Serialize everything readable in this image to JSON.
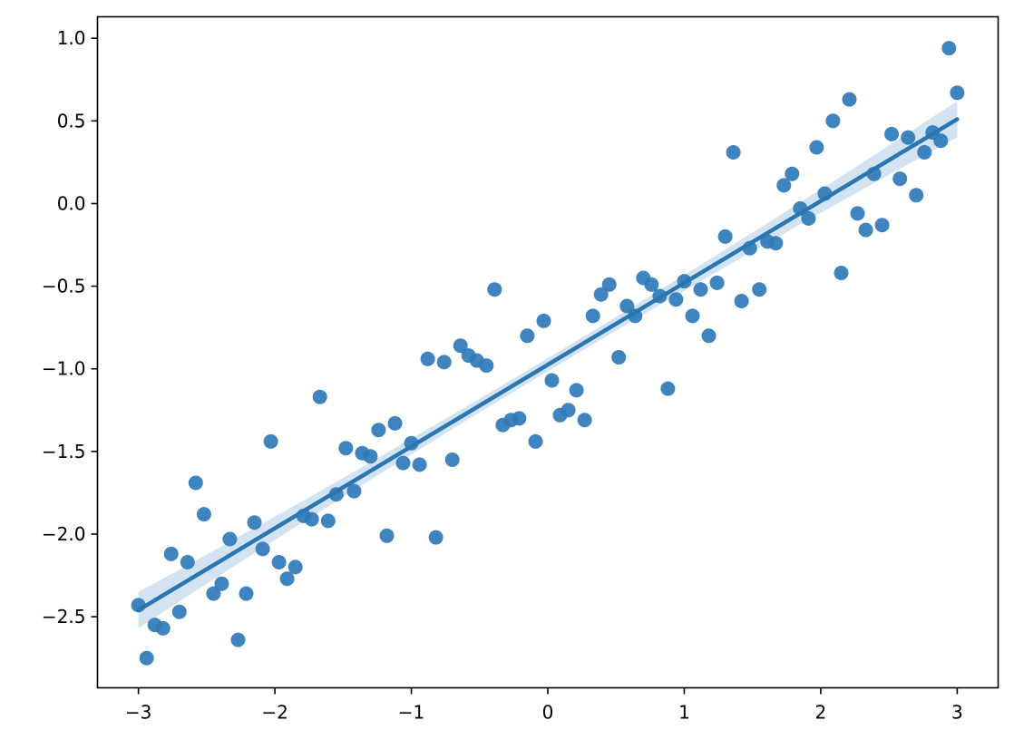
{
  "chart_data": {
    "type": "scatter",
    "title": "",
    "xlabel": "",
    "ylabel": "",
    "xlim": [
      -3.3,
      3.3
    ],
    "ylim": [
      -2.93,
      1.13
    ],
    "x_ticks": [
      -3,
      -2,
      -1,
      0,
      1,
      2,
      3
    ],
    "x_tick_labels": [
      "−3",
      "−2",
      "−1",
      "0",
      "1",
      "2",
      "3"
    ],
    "y_ticks": [
      -2.5,
      -2.0,
      -1.5,
      -1.0,
      -0.5,
      0.0,
      0.5,
      1.0
    ],
    "y_tick_labels": [
      "−2.5",
      "−2.0",
      "−1.5",
      "−1.0",
      "−0.5",
      "0.0",
      "0.5",
      "1.0"
    ],
    "grid": false,
    "colors": {
      "points": "#2f7ab8",
      "line": "#2a76b2",
      "band": "#c9dcee"
    },
    "series": [
      {
        "kind": "points",
        "x": [
          -3.0,
          -2.94,
          -2.88,
          -2.82,
          -2.76,
          -2.7,
          -2.64,
          -2.58,
          -2.52,
          -2.45,
          -2.39,
          -2.33,
          -2.27,
          -2.21,
          -2.15,
          -2.09,
          -2.03,
          -1.97,
          -1.91,
          -1.85,
          -1.79,
          -1.73,
          -1.67,
          -1.61,
          -1.55,
          -1.48,
          -1.42,
          -1.36,
          -1.3,
          -1.24,
          -1.18,
          -1.12,
          -1.06,
          -1.0,
          -0.94,
          -0.88,
          -0.82,
          -0.76,
          -0.7,
          -0.64,
          -0.58,
          -0.52,
          -0.45,
          -0.39,
          -0.33,
          -0.27,
          -0.21,
          -0.15,
          -0.09,
          -0.03,
          0.03,
          0.09,
          0.15,
          0.21,
          0.27,
          0.33,
          0.39,
          0.45,
          0.52,
          0.58,
          0.64,
          0.7,
          0.76,
          0.82,
          0.88,
          0.94,
          1.0,
          1.06,
          1.12,
          1.18,
          1.24,
          1.3,
          1.36,
          1.42,
          1.48,
          1.55,
          1.61,
          1.67,
          1.73,
          1.79,
          1.85,
          1.91,
          1.97,
          2.03,
          2.09,
          2.15,
          2.21,
          2.27,
          2.33,
          2.39,
          2.45,
          2.52,
          2.58,
          2.64,
          2.7,
          2.76,
          2.82,
          2.88,
          2.94,
          3.0
        ],
        "y": [
          -2.43,
          -2.75,
          -2.55,
          -2.57,
          -2.12,
          -2.47,
          -2.17,
          -1.69,
          -1.88,
          -2.36,
          -2.3,
          -2.03,
          -2.64,
          -2.36,
          -1.93,
          -2.09,
          -1.44,
          -2.17,
          -2.27,
          -2.2,
          -1.89,
          -1.91,
          -1.17,
          -1.92,
          -1.76,
          -1.48,
          -1.74,
          -1.51,
          -1.53,
          -1.37,
          -2.01,
          -1.33,
          -1.57,
          -1.45,
          -1.58,
          -0.94,
          -2.02,
          -0.96,
          -1.55,
          -0.86,
          -0.92,
          -0.95,
          -0.98,
          -0.52,
          -1.34,
          -1.31,
          -1.3,
          -0.8,
          -1.44,
          -0.71,
          -1.07,
          -1.28,
          -1.25,
          -1.13,
          -1.31,
          -0.68,
          -0.55,
          -0.49,
          -0.93,
          -0.62,
          -0.68,
          -0.45,
          -0.49,
          -0.56,
          -1.12,
          -0.58,
          -0.47,
          -0.68,
          -0.52,
          -0.8,
          -0.48,
          -0.2,
          0.31,
          -0.59,
          -0.27,
          -0.52,
          -0.23,
          -0.24,
          0.11,
          0.18,
          -0.03,
          -0.09,
          0.34,
          0.06,
          0.5,
          -0.42,
          0.63,
          -0.06,
          -0.16,
          0.18,
          -0.13,
          0.42,
          0.15,
          0.4,
          0.05,
          0.31,
          0.43,
          0.38,
          0.94,
          0.67
        ]
      },
      {
        "kind": "regression_line",
        "x": [
          -3.0,
          3.0
        ],
        "y": [
          -2.46,
          0.51
        ],
        "ci_halfwidth_ends": 0.11,
        "ci_halfwidth_center": 0.04
      }
    ]
  }
}
